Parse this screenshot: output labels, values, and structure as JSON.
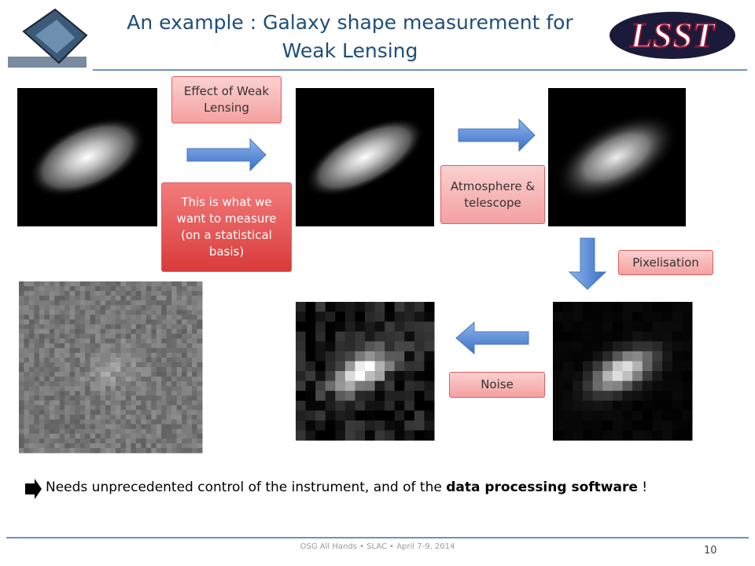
{
  "header": {
    "title_lines": [
      "An example : Galaxy shape measurement for",
      "Weak Lensing"
    ]
  },
  "labels": {
    "weak_lensing": "Effect of Weak Lensing",
    "measure": "This is what we want to measure (on a statistical basis)",
    "atmosphere": "Atmosphere & telescope",
    "pixelisation": "Pixelisation",
    "noise": "Noise"
  },
  "statement": {
    "parts": [
      "Needs unprecedented control of the instrument, and of the ",
      "data processing software",
      " !"
    ]
  },
  "footer": {
    "text": "OSG All Hands • SLAC • April 7-9, 2014",
    "page_number": 10
  }
}
